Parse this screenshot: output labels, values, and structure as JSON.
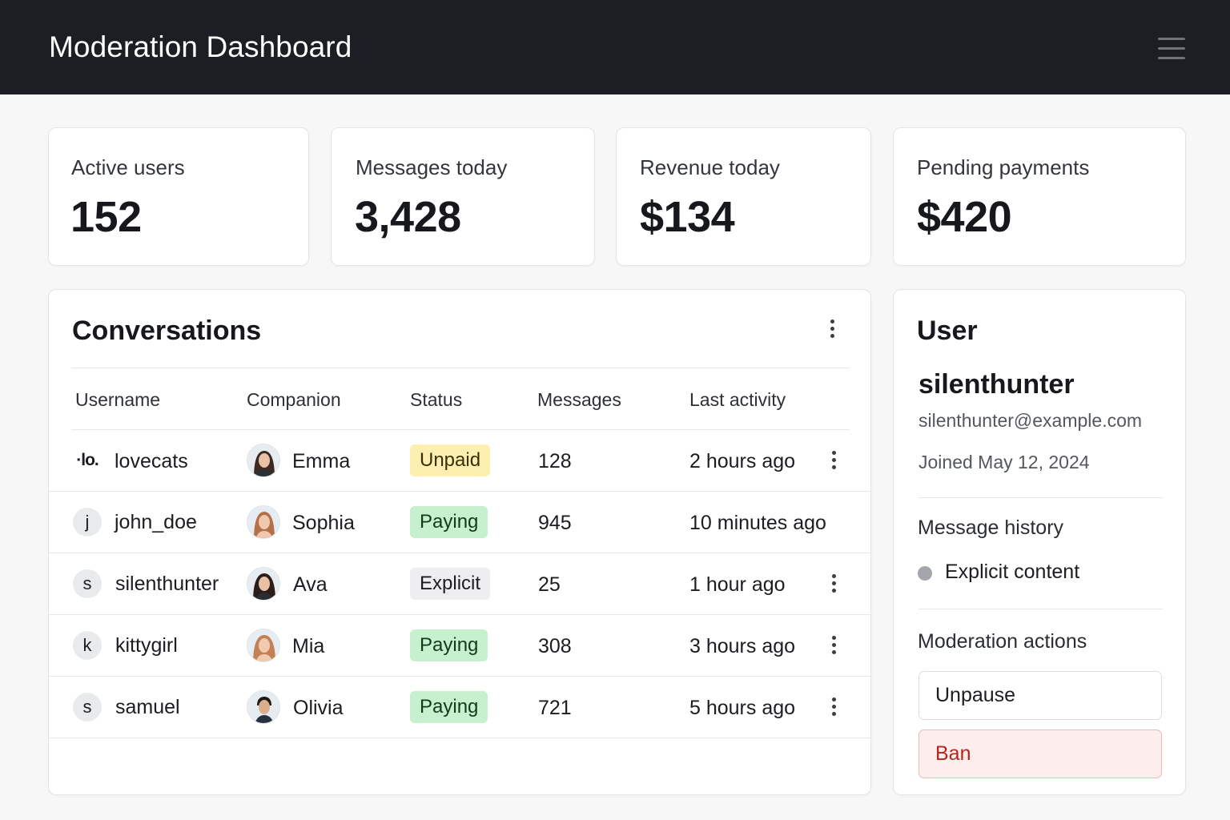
{
  "header": {
    "title": "Moderation Dashboard",
    "menu_icon": "hamburger-menu-icon"
  },
  "stats": [
    {
      "label": "Active users",
      "value": "152"
    },
    {
      "label": "Messages today",
      "value": "3,428"
    },
    {
      "label": "Revenue today",
      "value": "$134"
    },
    {
      "label": "Pending payments",
      "value": "$420"
    }
  ],
  "conversations": {
    "title": "Conversations",
    "columns": [
      "Username",
      "Companion",
      "Status",
      "Messages",
      "Last activity"
    ],
    "rows": [
      {
        "initial": "·lo.",
        "username": "lovecats",
        "companion": "Emma",
        "status": "Unpaid",
        "messages": "128",
        "last_activity": "2 hours ago",
        "has_menu": true
      },
      {
        "initial": "j",
        "username": "john_doe",
        "companion": "Sophia",
        "status": "Paying",
        "messages": "945",
        "last_activity": "10 minutes ago",
        "has_menu": false
      },
      {
        "initial": "s",
        "username": "silenthunter",
        "companion": "Ava",
        "status": "Explicit",
        "messages": "25",
        "last_activity": "1 hour ago",
        "has_menu": true
      },
      {
        "initial": "k",
        "username": "kittygirl",
        "companion": "Mia",
        "status": "Paying",
        "messages": "308",
        "last_activity": "3 hours ago",
        "has_menu": true
      },
      {
        "initial": "s",
        "username": "samuel",
        "companion": "Olivia",
        "status": "Paying",
        "messages": "721",
        "last_activity": "5 hours ago",
        "has_menu": true
      }
    ]
  },
  "user_panel": {
    "title": "User",
    "username": "silenthunter",
    "email": "silenthunter@example.com",
    "joined": "Joined May 12, 2024",
    "history_title": "Message history",
    "history_items": [
      "Explicit content"
    ],
    "actions_title": "Moderation actions",
    "actions": {
      "unpause": "Unpause",
      "ban": "Ban"
    }
  },
  "colors": {
    "topbar": "#1b1e22",
    "unpaid": "#fdefb0",
    "paying": "#c7f0cf",
    "explicit": "#eeeef0",
    "ban_text": "#b3261e",
    "ban_bg": "#fdeeee"
  }
}
